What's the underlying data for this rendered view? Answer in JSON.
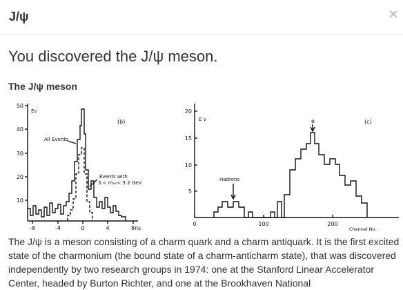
{
  "modal": {
    "title": "J/ψ",
    "close_glyph": "×",
    "close_icon": "close-icon"
  },
  "headline": "You discovered the J/ψ meson.",
  "section_title": "The J/ψ meson",
  "figure": {
    "left_panel": {
      "panel_label": "(b)",
      "y_unit": "Ev",
      "y_ticks": [
        "50",
        "40",
        "30",
        "20",
        "10"
      ],
      "x_ticks": [
        "-8",
        "-4",
        "0",
        "4",
        "8ns"
      ],
      "annotation_all": "All Events",
      "annotation_cut_1": "Events with",
      "annotation_cut_2": "3.< mₑₑ< 3.2 GeV"
    },
    "right_panel": {
      "panel_label": "(c)",
      "y_unit": "E v",
      "y_ticks": [
        "20",
        "15",
        "10",
        "5"
      ],
      "x_ticks": [
        "0",
        "100",
        "200"
      ],
      "x_unit": "Channel No.",
      "annotation_hadrons": "Hadrons",
      "annotation_e": "e"
    }
  },
  "description": "The J/ψ is a meson consisting of a charm quark and a charm antiquark. It is the first excited state of the charmonium (the bound state of a charm-anticharm state), that was discovered independently by two research groups in 1974: one at the Stanford Linear Accelerator Center, headed by Burton Richter, and one at the Brookhaven National"
}
